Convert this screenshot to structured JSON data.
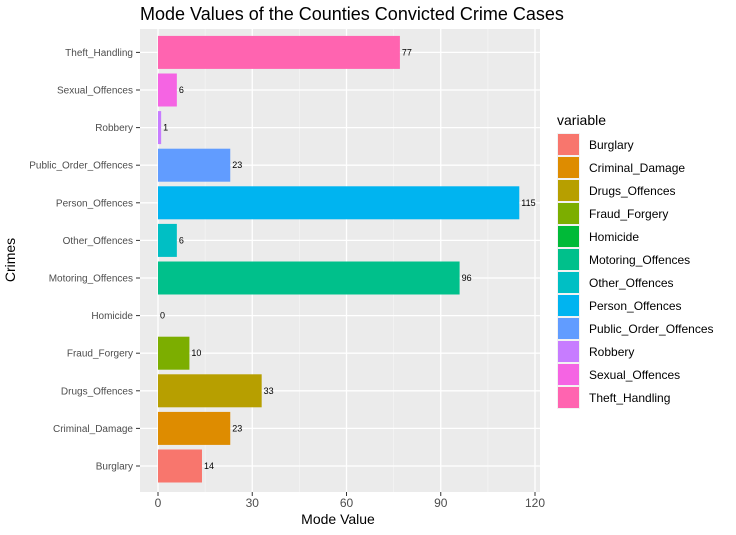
{
  "chart_data": {
    "type": "bar",
    "orientation": "horizontal",
    "title": "Mode Values of the Counties Convicted Crime Cases",
    "xlabel": "Mode Value",
    "ylabel": "Crimes",
    "xlim": [
      0,
      120
    ],
    "x_ticks": [
      0,
      30,
      60,
      90,
      120
    ],
    "categories": [
      "Burglary",
      "Criminal_Damage",
      "Drugs_Offences",
      "Fraud_Forgery",
      "Homicide",
      "Motoring_Offences",
      "Other_Offences",
      "Person_Offences",
      "Public_Order_Offences",
      "Robbery",
      "Sexual_Offences",
      "Theft_Handling"
    ],
    "values": [
      14,
      23,
      33,
      10,
      0,
      96,
      6,
      115,
      23,
      1,
      6,
      77
    ],
    "colors": [
      "#F8766D",
      "#DE8C00",
      "#B79F00",
      "#7CAE00",
      "#00BA38",
      "#00C08B",
      "#00BFC4",
      "#00B4F0",
      "#619CFF",
      "#C77CFF",
      "#F564E3",
      "#FF64B0"
    ],
    "legend": {
      "title": "variable",
      "position": "right",
      "entries": [
        "Burglary",
        "Criminal_Damage",
        "Drugs_Offences",
        "Fraud_Forgery",
        "Homicide",
        "Motoring_Offences",
        "Other_Offences",
        "Person_Offences",
        "Public_Order_Offences",
        "Robbery",
        "Sexual_Offences",
        "Theft_Handling"
      ]
    },
    "grid": true,
    "panel_background": "#EBEBEB"
  }
}
